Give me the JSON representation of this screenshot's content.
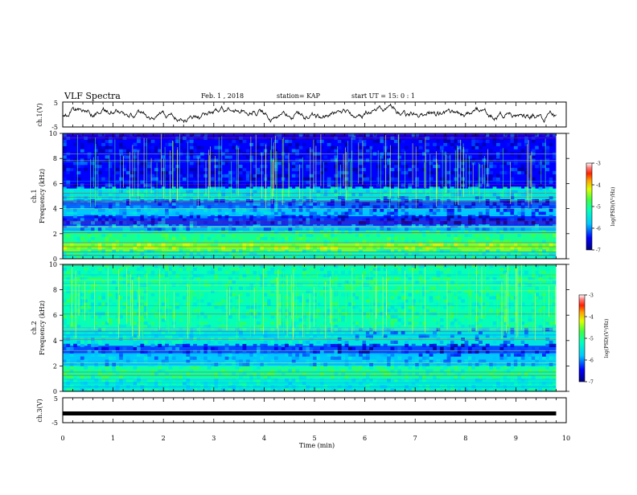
{
  "header": {
    "title": "VLF Spectra",
    "date": "Feb. 1 , 2018",
    "station": "station= KAP",
    "start_ut": "start UT =  15: 0 : 1"
  },
  "chart_data": [
    {
      "type": "line",
      "name": "ch1-waveform",
      "ylabel": "ch.1(V)",
      "ylim": [
        -5,
        5
      ],
      "yticks": [
        "5",
        "-5"
      ],
      "xlim": [
        0,
        10
      ],
      "x_extent": [
        0,
        9.8
      ],
      "color": "#000000"
    },
    {
      "type": "heatmap",
      "name": "ch1-spectrogram",
      "ylabel_line1": "ch.1",
      "ylabel_line2": "Frequency (kHz)",
      "ylim": [
        0,
        10
      ],
      "yticks": [
        "0",
        "2",
        "4",
        "6",
        "8",
        "10"
      ],
      "xlim": [
        0,
        10
      ],
      "x_extent": [
        0,
        9.8
      ],
      "colorbar": {
        "label": "log(PSD)(V²/Hz)",
        "range": [
          -7,
          -3
        ],
        "ticks": [
          "-3",
          "-4",
          "-5",
          "-6",
          "-7"
        ]
      },
      "bands": [
        {
          "f0": 0.0,
          "f1": 0.6,
          "level": 0.45
        },
        {
          "f0": 0.6,
          "f1": 1.2,
          "level": 0.62
        },
        {
          "f0": 1.2,
          "f1": 2.2,
          "level": 0.5
        },
        {
          "f0": 2.2,
          "f1": 2.6,
          "level": 0.28
        },
        {
          "f0": 2.6,
          "f1": 3.4,
          "level": 0.18
        },
        {
          "f0": 3.4,
          "f1": 4.0,
          "level": 0.3
        },
        {
          "f0": 4.0,
          "f1": 4.6,
          "level": 0.22
        },
        {
          "f0": 4.6,
          "f1": 5.6,
          "level": 0.38
        },
        {
          "f0": 5.6,
          "f1": 10.0,
          "level": 0.14
        }
      ]
    },
    {
      "type": "heatmap",
      "name": "ch2-spectrogram",
      "ylabel_line1": "ch.2",
      "ylabel_line2": "Frequency (kHz)",
      "ylim": [
        0,
        10
      ],
      "yticks": [
        "0",
        "2",
        "4",
        "6",
        "8",
        "10"
      ],
      "xlim": [
        0,
        10
      ],
      "x_extent": [
        0,
        9.8
      ],
      "colorbar": {
        "label": "log(PSD)(V²/Hz)",
        "range": [
          -7,
          -3
        ],
        "ticks": [
          "-3",
          "-4",
          "-5",
          "-6",
          "-7"
        ]
      },
      "bands": [
        {
          "f0": 0.0,
          "f1": 1.0,
          "level": 0.4
        },
        {
          "f0": 1.0,
          "f1": 2.0,
          "level": 0.48
        },
        {
          "f0": 2.0,
          "f1": 3.0,
          "level": 0.3
        },
        {
          "f0": 3.0,
          "f1": 3.6,
          "level": 0.2
        },
        {
          "f0": 3.6,
          "f1": 5.0,
          "level": 0.38
        },
        {
          "f0": 5.0,
          "f1": 10.0,
          "level": 0.46
        }
      ]
    },
    {
      "type": "line",
      "name": "ch3-waveform",
      "ylabel": "ch.3(V)",
      "ylim": [
        -5,
        5
      ],
      "yticks": [
        "5",
        "-5"
      ],
      "xlim": [
        0,
        10
      ],
      "x_extent": [
        0,
        9.8
      ],
      "level": -1.3,
      "color": "#000000"
    }
  ],
  "xaxis": {
    "label": "Time  (min)",
    "ticks": [
      "0",
      "1",
      "2",
      "3",
      "4",
      "5",
      "6",
      "7",
      "8",
      "9",
      "10"
    ]
  }
}
